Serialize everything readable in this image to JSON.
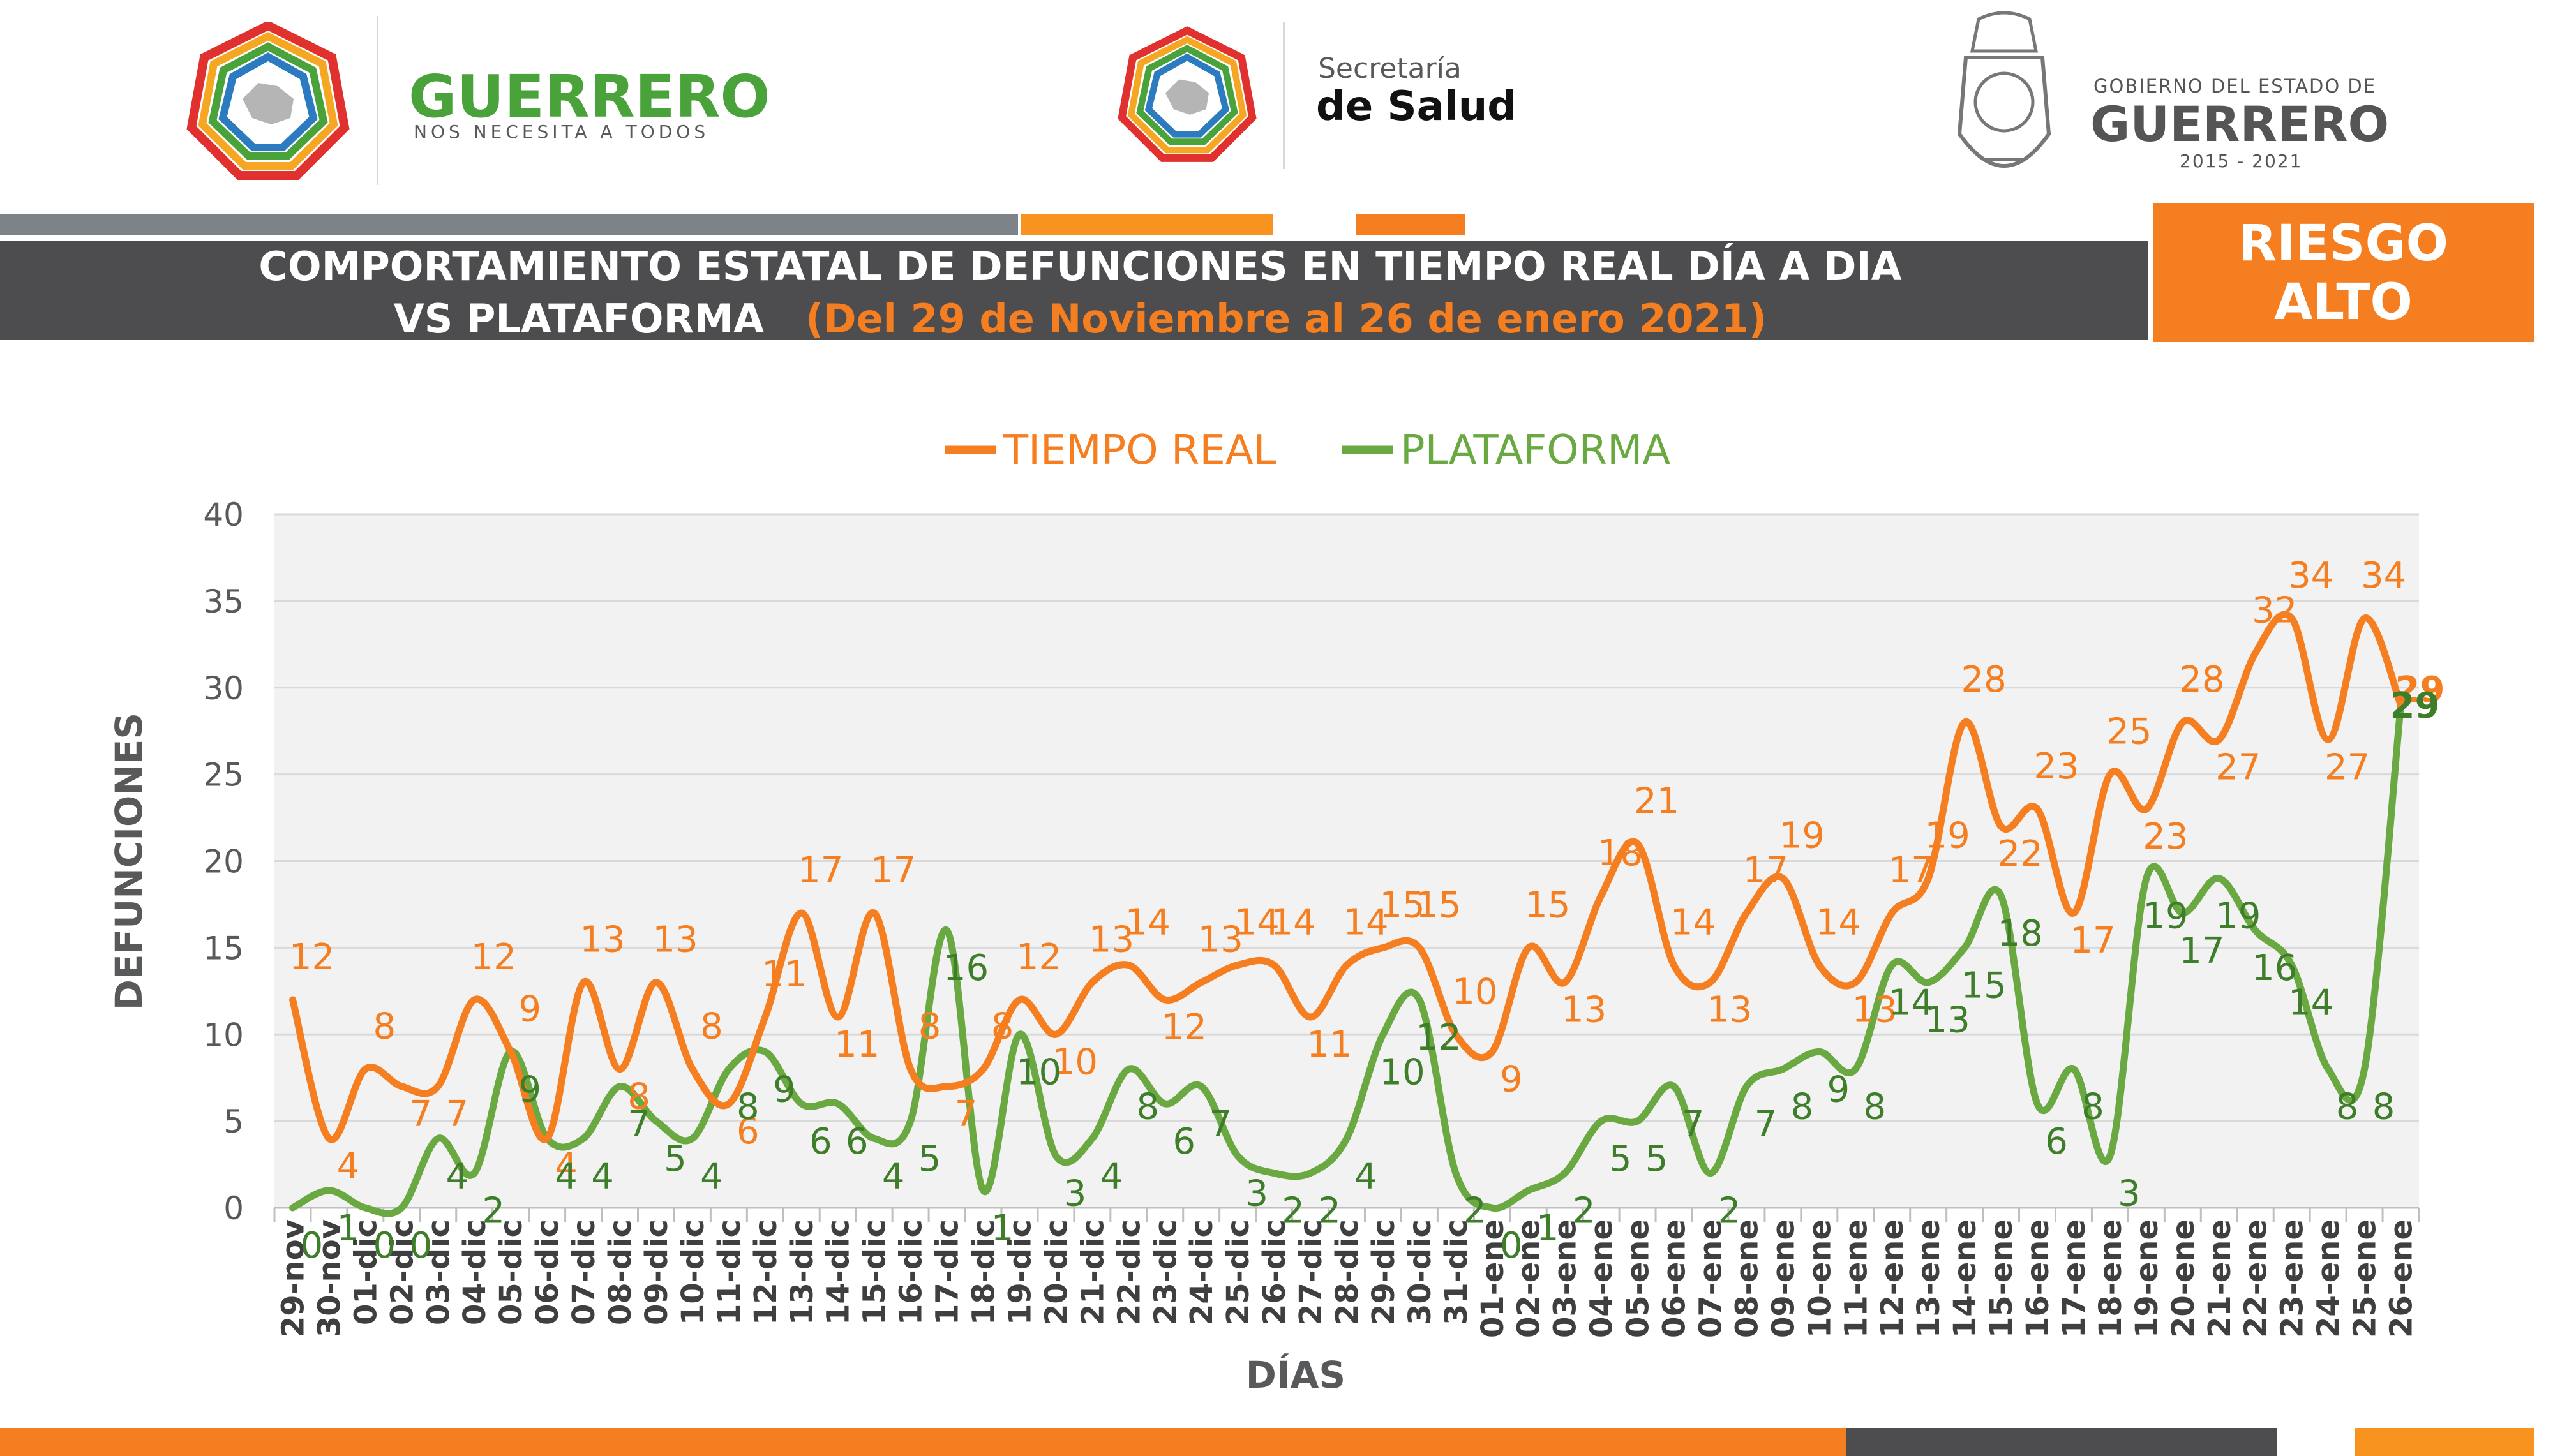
{
  "header": {
    "logo1": {
      "name": "GUERRERO",
      "tagline": "NOS NECESITA A TODOS"
    },
    "logo2": {
      "line1": "Secretaría",
      "line2": "de Salud"
    },
    "logo3": {
      "line1": "GOBIERNO DEL ESTADO DE",
      "line2": "GUERRERO",
      "years": "2015 - 2021"
    }
  },
  "banner": {
    "title_line1": "COMPORTAMIENTO ESTATAL DE DEFUNCIONES EN TIEMPO REAL DÍA A DIA",
    "title_line2": "VS PLATAFORMA",
    "date_range": "(Del 29 de Noviembre al 26 de enero 2021)",
    "risk_line1": "RIESGO",
    "risk_line2": "ALTO"
  },
  "colors": {
    "orange": "#f57e20",
    "green": "#6aa842",
    "green_dark": "#3e7d2a",
    "dark_gray": "#4d4d4f",
    "gray": "#7d8389"
  },
  "chart_data": {
    "type": "line",
    "xlabel": "DÍAS",
    "ylabel": "DEFUNCIONES",
    "ylim": [
      0,
      40
    ],
    "yticks": [
      0,
      5,
      10,
      15,
      20,
      25,
      30,
      35,
      40
    ],
    "grid": true,
    "legend_position": "top",
    "categories": [
      "29-nov",
      "30-nov",
      "01-dic",
      "02-dic",
      "03-dic",
      "04-dic",
      "05-dic",
      "06-dic",
      "07-dic",
      "08-dic",
      "09-dic",
      "10-dic",
      "11-dic",
      "12-dic",
      "13-dic",
      "14-dic",
      "15-dic",
      "16-dic",
      "17-dic",
      "18-dic",
      "19-dic",
      "20-dic",
      "21-dic",
      "22-dic",
      "23-dic",
      "24-dic",
      "25-dic",
      "26-dic",
      "27-dic",
      "28-dic",
      "29-dic",
      "30-dic",
      "31-dic",
      "01-ene",
      "02-ene",
      "03-ene",
      "04-ene",
      "05-ene",
      "06-ene",
      "07-ene",
      "08-ene",
      "09-ene",
      "10-ene",
      "11-ene",
      "12-ene",
      "13-ene",
      "14-ene",
      "15-ene",
      "16-ene",
      "17-ene",
      "18-ene",
      "19-ene",
      "20-ene",
      "21-ene",
      "22-ene",
      "23-ene",
      "24-ene",
      "25-ene",
      "26-ene"
    ],
    "series": [
      {
        "name": "TIEMPO REAL",
        "color": "#f57e20",
        "values": [
          12,
          4,
          8,
          7,
          7,
          12,
          9,
          4,
          13,
          8,
          13,
          8,
          6,
          11,
          17,
          11,
          17,
          8,
          7,
          8,
          12,
          10,
          13,
          14,
          12,
          13,
          14,
          14,
          11,
          14,
          15,
          15,
          10,
          9,
          15,
          13,
          18,
          21,
          14,
          13,
          17,
          19,
          14,
          13,
          17,
          19,
          28,
          22,
          23,
          17,
          25,
          23,
          28,
          27,
          32,
          34,
          27,
          34,
          29
        ]
      },
      {
        "name": "PLATAFORMA",
        "color": "#6aa842",
        "values": [
          0,
          1,
          0,
          0,
          4,
          2,
          9,
          4,
          4,
          7,
          5,
          4,
          8,
          9,
          6,
          6,
          4,
          5,
          16,
          1,
          10,
          3,
          4,
          8,
          6,
          7,
          3,
          2,
          2,
          4,
          10,
          12,
          2,
          0,
          1,
          2,
          5,
          5,
          7,
          2,
          7,
          8,
          9,
          8,
          14,
          13,
          15,
          18,
          6,
          8,
          3,
          19,
          17,
          19,
          16,
          14,
          8,
          8,
          29
        ]
      }
    ]
  }
}
